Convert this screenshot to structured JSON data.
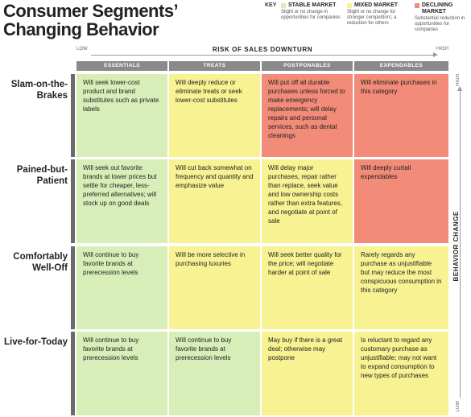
{
  "title": {
    "line1": "Consumer Segments’",
    "line2": "Changing Behavior"
  },
  "key": {
    "label": "KEY",
    "stable": {
      "name": "STABLE MARKET",
      "desc": "Slight or no change in opportunities for companies",
      "color": "#d8eeb8"
    },
    "mixed": {
      "name": "MIXED MARKET",
      "desc": "Slight or no change for stronger competitors; a reduction for others",
      "color": "#f8f293"
    },
    "declining": {
      "name": "DECLINING MARKET",
      "desc": "Substantial reduction in opportunities for companies",
      "color": "#f28b78"
    }
  },
  "risk_axis": {
    "title": "RISK OF SALES DOWNTURN",
    "low": "LOW",
    "high": "HIGH"
  },
  "behavior_axis": {
    "title": "BEHAVIOR CHANGE",
    "high": "HIGH",
    "low": "LOW"
  },
  "columns": [
    "ESSENTIALS",
    "TREATS",
    "POSTPONABLES",
    "EXPENDABLES"
  ],
  "rows": [
    {
      "label": "Slam-on-the-Brakes",
      "cells": [
        {
          "text": "Will seek lower-cost product and brand substitutes such as private labels",
          "market": "stable"
        },
        {
          "text": "Will deeply reduce or eliminate treats or seek lower-cost substitutes",
          "market": "mixed"
        },
        {
          "text": "Will put off all durable purchases unless forced to make emergency replacements; will delay repairs and personal services, such as dental cleanings",
          "market": "declining"
        },
        {
          "text": "Will eliminate purchases in this category",
          "market": "declining"
        }
      ]
    },
    {
      "label": "Pained-but-Patient",
      "cells": [
        {
          "text": "Will seek out favorite brands at lower prices but settle for cheaper, less-preferred alternatives; will stock up on good deals",
          "market": "stable"
        },
        {
          "text": "Will cut back somewhat on frequency and quantity and emphasize value",
          "market": "mixed"
        },
        {
          "text": "Will delay major purchases, repair rather than replace, seek value and low ownership costs rather than extra features, and negotiate at point of sale",
          "market": "mixed"
        },
        {
          "text": "Will deeply curtail expendables",
          "market": "declining"
        }
      ]
    },
    {
      "label": "Comfortably Well-Off",
      "cells": [
        {
          "text": "Will continue to buy favorite brands at prerecession levels",
          "market": "stable"
        },
        {
          "text": "Will be more selective in purchasing luxuries",
          "market": "mixed"
        },
        {
          "text": "Will seek better quality for the price; will negotiate harder at point of sale",
          "market": "mixed"
        },
        {
          "text": "Rarely regards any purchase as unjustifiable but may reduce the most conspicuous consumption in this category",
          "market": "mixed"
        }
      ]
    },
    {
      "label": "Live-for-Today",
      "cells": [
        {
          "text": "Will continue to buy favorite brands at prerecession levels",
          "market": "stable"
        },
        {
          "text": "Will continue to buy favorite brands at prerecession levels",
          "market": "stable"
        },
        {
          "text": "May buy if there is a great deal; otherwise may postpone",
          "market": "mixed"
        },
        {
          "text": "Is reluctant to regard any customary purchase as unjustifiable; may not want to expand consumption to new types of purchases",
          "market": "mixed"
        }
      ]
    }
  ]
}
